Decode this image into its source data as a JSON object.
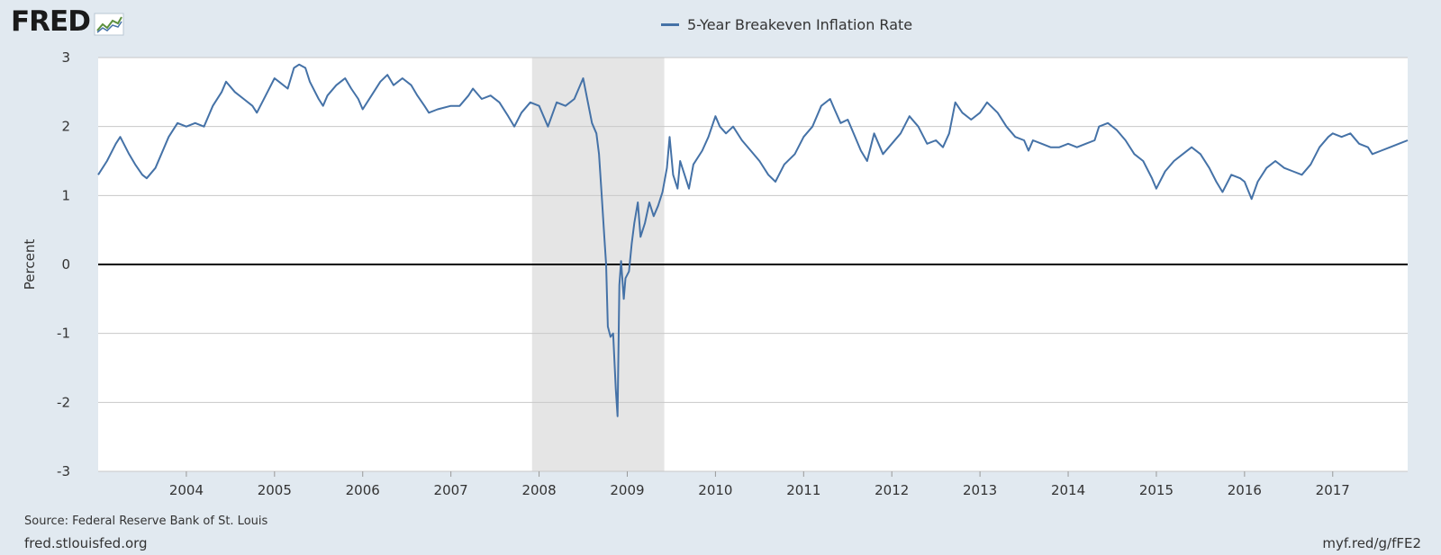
{
  "brand": {
    "logo_text": "FRED",
    "logo_icon": "chart-line-icon"
  },
  "colors": {
    "background": "#e1e9f0",
    "plot_background": "#ffffff",
    "series": "#4572a7",
    "recession_shade": "#e5e5e5",
    "grid": "#c8c8c8",
    "zero_line": "#000000"
  },
  "legend": {
    "label": "5-Year Breakeven Inflation Rate"
  },
  "footer": {
    "source": "Source: Federal Reserve Bank of St. Louis",
    "site": "fred.stlouisfed.org",
    "short_link": "myf.red/g/fFE2"
  },
  "chart_data": {
    "type": "line",
    "title": "",
    "xlabel": "",
    "ylabel": "Percent",
    "xlim": [
      2003.0,
      2017.85
    ],
    "ylim": [
      -3,
      3
    ],
    "y_ticks": [
      -3,
      -2,
      -1,
      0,
      1,
      2,
      3
    ],
    "x_ticks": [
      2004,
      2005,
      2006,
      2007,
      2008,
      2009,
      2010,
      2011,
      2012,
      2013,
      2014,
      2015,
      2016,
      2017
    ],
    "grid": true,
    "legend_position": "top-center",
    "recessions": [
      [
        2007.92,
        2009.42
      ]
    ],
    "series": [
      {
        "name": "5-Year Breakeven Inflation Rate",
        "points": [
          [
            2003.0,
            1.3
          ],
          [
            2003.1,
            1.5
          ],
          [
            2003.2,
            1.75
          ],
          [
            2003.25,
            1.85
          ],
          [
            2003.35,
            1.6
          ],
          [
            2003.42,
            1.45
          ],
          [
            2003.5,
            1.3
          ],
          [
            2003.55,
            1.25
          ],
          [
            2003.65,
            1.4
          ],
          [
            2003.75,
            1.7
          ],
          [
            2003.8,
            1.85
          ],
          [
            2003.9,
            2.05
          ],
          [
            2004.0,
            2.0
          ],
          [
            2004.1,
            2.05
          ],
          [
            2004.2,
            2.0
          ],
          [
            2004.3,
            2.3
          ],
          [
            2004.4,
            2.5
          ],
          [
            2004.45,
            2.65
          ],
          [
            2004.55,
            2.5
          ],
          [
            2004.65,
            2.4
          ],
          [
            2004.75,
            2.3
          ],
          [
            2004.8,
            2.2
          ],
          [
            2004.9,
            2.45
          ],
          [
            2005.0,
            2.7
          ],
          [
            2005.05,
            2.65
          ],
          [
            2005.15,
            2.55
          ],
          [
            2005.22,
            2.85
          ],
          [
            2005.28,
            2.9
          ],
          [
            2005.35,
            2.85
          ],
          [
            2005.4,
            2.65
          ],
          [
            2005.5,
            2.4
          ],
          [
            2005.55,
            2.3
          ],
          [
            2005.6,
            2.45
          ],
          [
            2005.7,
            2.6
          ],
          [
            2005.8,
            2.7
          ],
          [
            2005.87,
            2.55
          ],
          [
            2005.95,
            2.4
          ],
          [
            2006.0,
            2.25
          ],
          [
            2006.1,
            2.45
          ],
          [
            2006.2,
            2.65
          ],
          [
            2006.28,
            2.75
          ],
          [
            2006.35,
            2.6
          ],
          [
            2006.45,
            2.7
          ],
          [
            2006.55,
            2.6
          ],
          [
            2006.62,
            2.45
          ],
          [
            2006.7,
            2.3
          ],
          [
            2006.75,
            2.2
          ],
          [
            2006.85,
            2.25
          ],
          [
            2007.0,
            2.3
          ],
          [
            2007.1,
            2.3
          ],
          [
            2007.2,
            2.45
          ],
          [
            2007.25,
            2.55
          ],
          [
            2007.35,
            2.4
          ],
          [
            2007.45,
            2.45
          ],
          [
            2007.55,
            2.35
          ],
          [
            2007.65,
            2.15
          ],
          [
            2007.72,
            2.0
          ],
          [
            2007.8,
            2.2
          ],
          [
            2007.9,
            2.35
          ],
          [
            2008.0,
            2.3
          ],
          [
            2008.05,
            2.15
          ],
          [
            2008.1,
            2.0
          ],
          [
            2008.2,
            2.35
          ],
          [
            2008.3,
            2.3
          ],
          [
            2008.4,
            2.4
          ],
          [
            2008.45,
            2.55
          ],
          [
            2008.5,
            2.7
          ],
          [
            2008.53,
            2.5
          ],
          [
            2008.6,
            2.05
          ],
          [
            2008.65,
            1.9
          ],
          [
            2008.68,
            1.6
          ],
          [
            2008.71,
            1.0
          ],
          [
            2008.74,
            0.4
          ],
          [
            2008.76,
            0.0
          ],
          [
            2008.78,
            -0.9
          ],
          [
            2008.81,
            -1.05
          ],
          [
            2008.84,
            -1.0
          ],
          [
            2008.87,
            -1.8
          ],
          [
            2008.89,
            -2.2
          ],
          [
            2008.91,
            -0.3
          ],
          [
            2008.93,
            0.05
          ],
          [
            2008.96,
            -0.5
          ],
          [
            2008.98,
            -0.2
          ],
          [
            2009.02,
            -0.1
          ],
          [
            2009.05,
            0.3
          ],
          [
            2009.08,
            0.6
          ],
          [
            2009.12,
            0.9
          ],
          [
            2009.15,
            0.4
          ],
          [
            2009.2,
            0.6
          ],
          [
            2009.25,
            0.9
          ],
          [
            2009.3,
            0.7
          ],
          [
            2009.35,
            0.85
          ],
          [
            2009.4,
            1.05
          ],
          [
            2009.45,
            1.4
          ],
          [
            2009.48,
            1.85
          ],
          [
            2009.52,
            1.3
          ],
          [
            2009.57,
            1.1
          ],
          [
            2009.6,
            1.5
          ],
          [
            2009.65,
            1.3
          ],
          [
            2009.7,
            1.1
          ],
          [
            2009.75,
            1.45
          ],
          [
            2009.85,
            1.65
          ],
          [
            2009.92,
            1.85
          ],
          [
            2010.0,
            2.15
          ],
          [
            2010.05,
            2.0
          ],
          [
            2010.12,
            1.9
          ],
          [
            2010.2,
            2.0
          ],
          [
            2010.3,
            1.8
          ],
          [
            2010.4,
            1.65
          ],
          [
            2010.5,
            1.5
          ],
          [
            2010.6,
            1.3
          ],
          [
            2010.68,
            1.2
          ],
          [
            2010.78,
            1.45
          ],
          [
            2010.9,
            1.6
          ],
          [
            2011.0,
            1.85
          ],
          [
            2011.1,
            2.0
          ],
          [
            2011.2,
            2.3
          ],
          [
            2011.3,
            2.4
          ],
          [
            2011.35,
            2.25
          ],
          [
            2011.42,
            2.05
          ],
          [
            2011.5,
            2.1
          ],
          [
            2011.55,
            1.95
          ],
          [
            2011.65,
            1.65
          ],
          [
            2011.72,
            1.5
          ],
          [
            2011.8,
            1.9
          ],
          [
            2011.9,
            1.6
          ],
          [
            2012.0,
            1.75
          ],
          [
            2012.1,
            1.9
          ],
          [
            2012.2,
            2.15
          ],
          [
            2012.3,
            2.0
          ],
          [
            2012.4,
            1.75
          ],
          [
            2012.5,
            1.8
          ],
          [
            2012.58,
            1.7
          ],
          [
            2012.65,
            1.9
          ],
          [
            2012.72,
            2.35
          ],
          [
            2012.8,
            2.2
          ],
          [
            2012.9,
            2.1
          ],
          [
            2013.0,
            2.2
          ],
          [
            2013.08,
            2.35
          ],
          [
            2013.2,
            2.2
          ],
          [
            2013.3,
            2.0
          ],
          [
            2013.4,
            1.85
          ],
          [
            2013.5,
            1.8
          ],
          [
            2013.55,
            1.65
          ],
          [
            2013.6,
            1.8
          ],
          [
            2013.7,
            1.75
          ],
          [
            2013.8,
            1.7
          ],
          [
            2013.9,
            1.7
          ],
          [
            2014.0,
            1.75
          ],
          [
            2014.1,
            1.7
          ],
          [
            2014.2,
            1.75
          ],
          [
            2014.3,
            1.8
          ],
          [
            2014.35,
            2.0
          ],
          [
            2014.45,
            2.05
          ],
          [
            2014.55,
            1.95
          ],
          [
            2014.65,
            1.8
          ],
          [
            2014.75,
            1.6
          ],
          [
            2014.85,
            1.5
          ],
          [
            2014.95,
            1.25
          ],
          [
            2015.0,
            1.1
          ],
          [
            2015.1,
            1.35
          ],
          [
            2015.2,
            1.5
          ],
          [
            2015.3,
            1.6
          ],
          [
            2015.4,
            1.7
          ],
          [
            2015.5,
            1.6
          ],
          [
            2015.6,
            1.4
          ],
          [
            2015.68,
            1.2
          ],
          [
            2015.75,
            1.05
          ],
          [
            2015.85,
            1.3
          ],
          [
            2015.95,
            1.25
          ],
          [
            2016.0,
            1.2
          ],
          [
            2016.08,
            0.95
          ],
          [
            2016.15,
            1.2
          ],
          [
            2016.25,
            1.4
          ],
          [
            2016.35,
            1.5
          ],
          [
            2016.45,
            1.4
          ],
          [
            2016.55,
            1.35
          ],
          [
            2016.65,
            1.3
          ],
          [
            2016.75,
            1.45
          ],
          [
            2016.85,
            1.7
          ],
          [
            2016.95,
            1.85
          ],
          [
            2017.0,
            1.9
          ],
          [
            2017.1,
            1.85
          ],
          [
            2017.2,
            1.9
          ],
          [
            2017.3,
            1.75
          ],
          [
            2017.4,
            1.7
          ],
          [
            2017.45,
            1.6
          ],
          [
            2017.55,
            1.65
          ],
          [
            2017.65,
            1.7
          ],
          [
            2017.75,
            1.75
          ],
          [
            2017.85,
            1.8
          ]
        ]
      }
    ]
  }
}
